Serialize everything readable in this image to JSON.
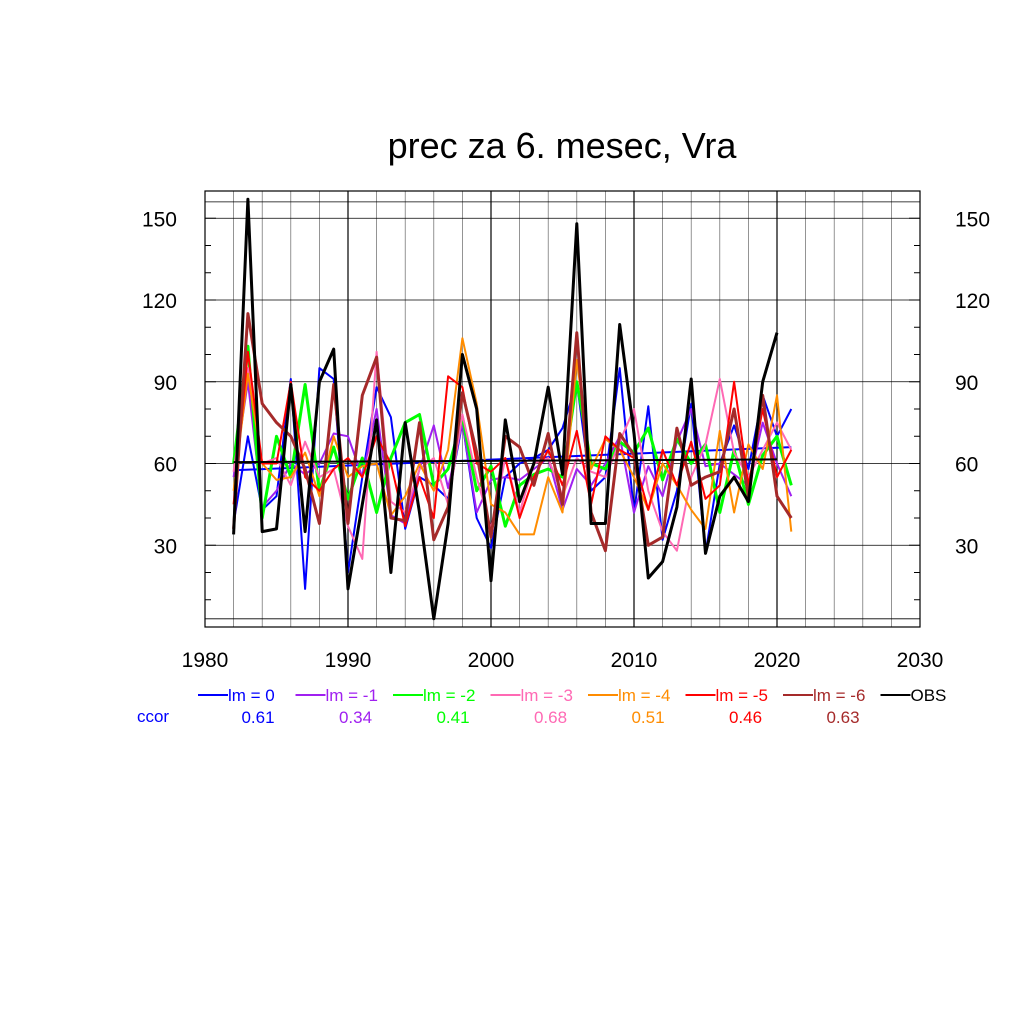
{
  "chart_data": {
    "type": "line",
    "title": "prec za 6. mesec, Vra",
    "xlim": [
      1980,
      2030
    ],
    "ylim": [
      0,
      160
    ],
    "x_ticks": [
      1980,
      1990,
      2000,
      2010,
      2020,
      2030
    ],
    "y_ticks": [
      30,
      60,
      90,
      120,
      150
    ],
    "grid": true,
    "legend_position": "bottom",
    "x": [
      1982,
      1983,
      1984,
      1985,
      1986,
      1987,
      1988,
      1989,
      1990,
      1991,
      1992,
      1993,
      1994,
      1995,
      1996,
      1997,
      1998,
      1999,
      2000,
      2001,
      2002,
      2003,
      2004,
      2005,
      2006,
      2007,
      2008,
      2009,
      2010,
      2011,
      2012,
      2013,
      2014,
      2015,
      2016,
      2017,
      2018,
      2019,
      2020,
      2021
    ],
    "series": [
      {
        "name": "lm = 0",
        "color": "#0000ff",
        "width": 2,
        "values": [
          38,
          70,
          43,
          48,
          91,
          14,
          95,
          91,
          20,
          55,
          88,
          77,
          36,
          55,
          52,
          47,
          75,
          40,
          29,
          55,
          60,
          62,
          65,
          73,
          90,
          50,
          55,
          95,
          42,
          81,
          32,
          50,
          82,
          27,
          60,
          74,
          58,
          85,
          70,
          80
        ],
        "trend": [
          [
            1982,
            57.5
          ],
          [
            2021,
            66
          ]
        ]
      },
      {
        "name": "lm = -1",
        "color": "#a020f0",
        "width": 2,
        "values": [
          55,
          90,
          44,
          50,
          60,
          56,
          60,
          71,
          70,
          55,
          80,
          41,
          38,
          58,
          74,
          51,
          75,
          42,
          54,
          55,
          54,
          58,
          62,
          43,
          58,
          52,
          60,
          70,
          42,
          59,
          48,
          68,
          80,
          59,
          60,
          56,
          52,
          75,
          60,
          48
        ]
      },
      {
        "name": "lm = -2",
        "color": "#00ff00",
        "width": 3,
        "values": [
          60,
          103,
          40,
          70,
          55,
          89,
          50,
          66,
          47,
          62,
          42,
          62,
          75,
          78,
          52,
          58,
          77,
          50,
          59,
          37,
          52,
          56,
          58,
          55,
          90,
          60,
          58,
          68,
          64,
          73,
          54,
          69,
          60,
          67,
          42,
          65,
          45,
          63,
          70,
          52
        ]
      },
      {
        "name": "lm = -3",
        "color": "#ff69b4",
        "width": 2,
        "values": [
          57,
          95,
          60,
          62,
          52,
          68,
          55,
          58,
          37,
          25,
          101,
          46,
          42,
          58,
          62,
          45,
          78,
          55,
          36,
          62,
          42,
          60,
          62,
          48,
          62,
          57,
          55,
          68,
          80,
          50,
          35,
          28,
          55,
          67,
          91,
          64,
          55,
          65,
          75,
          65
        ]
      },
      {
        "name": "lm = -4",
        "color": "#ff8c00",
        "width": 2,
        "values": [
          50,
          93,
          60,
          54,
          55,
          64,
          48,
          70,
          55,
          59,
          60,
          41,
          48,
          60,
          50,
          65,
          106,
          82,
          45,
          42,
          34,
          34,
          55,
          42,
          98,
          58,
          69,
          65,
          55,
          43,
          60,
          52,
          43,
          36,
          72,
          42,
          67,
          58,
          85,
          35
        ]
      },
      {
        "name": "lm = -5",
        "color": "#ff0000",
        "width": 2,
        "values": [
          45,
          101,
          60,
          60,
          90,
          55,
          50,
          58,
          62,
          55,
          70,
          60,
          37,
          55,
          40,
          92,
          88,
          60,
          57,
          62,
          40,
          55,
          65,
          52,
          72,
          45,
          70,
          65,
          62,
          43,
          65,
          52,
          68,
          47,
          52,
          90,
          52,
          80,
          55,
          65
        ]
      },
      {
        "name": "lm = -6",
        "color": "#a52a2a",
        "width": 3,
        "values": [
          36,
          115,
          82,
          75,
          70,
          58,
          38,
          89,
          38,
          85,
          99,
          40,
          39,
          75,
          32,
          44,
          86,
          64,
          33,
          70,
          66,
          52,
          71,
          45,
          108,
          42,
          28,
          71,
          63,
          30,
          33,
          73,
          52,
          55,
          57,
          80,
          48,
          85,
          48,
          40
        ]
      },
      {
        "name": "OBS",
        "color": "#000000",
        "width": 3,
        "x": [
          1982,
          1983,
          1984,
          1985,
          1986,
          1987,
          1988,
          1989,
          1990,
          1991,
          1992,
          1993,
          1994,
          1995,
          1996,
          1997,
          1998,
          1999,
          2000,
          2001,
          2002,
          2003,
          2004,
          2005,
          2006,
          2007,
          2008,
          2009,
          2010,
          2011,
          2012,
          2013,
          2014,
          2015,
          2016,
          2017,
          2018,
          2019,
          2020
        ],
        "values": [
          34,
          157,
          35,
          36,
          89,
          35,
          90,
          102,
          14,
          45,
          76,
          20,
          75,
          42,
          3,
          38,
          100,
          80,
          17,
          76,
          46,
          60,
          88,
          56,
          148,
          38,
          38,
          111,
          71,
          18,
          24,
          44,
          91,
          27,
          48,
          55,
          46,
          90,
          108
        ],
        "trend": [
          [
            1982,
            60.5
          ],
          [
            2020,
            61.5
          ]
        ]
      }
    ],
    "legend": [
      {
        "label": "lm = 0",
        "ccor": "0.61",
        "color": "#0000ff"
      },
      {
        "label": "lm = -1",
        "ccor": "0.34",
        "color": "#a020f0"
      },
      {
        "label": "lm = -2",
        "ccor": "0.41",
        "color": "#00ff00"
      },
      {
        "label": "lm = -3",
        "ccor": "0.68",
        "color": "#ff69b4"
      },
      {
        "label": "lm = -4",
        "ccor": "0.51",
        "color": "#ff8c00"
      },
      {
        "label": "lm = -5",
        "ccor": "0.46",
        "color": "#ff0000"
      },
      {
        "label": "lm = -6",
        "ccor": "0.63",
        "color": "#a52a2a"
      },
      {
        "label": "OBS",
        "ccor": "",
        "color": "#000000"
      }
    ],
    "ccor_label": "ccor",
    "ccor_label_color": "#0000ff"
  }
}
